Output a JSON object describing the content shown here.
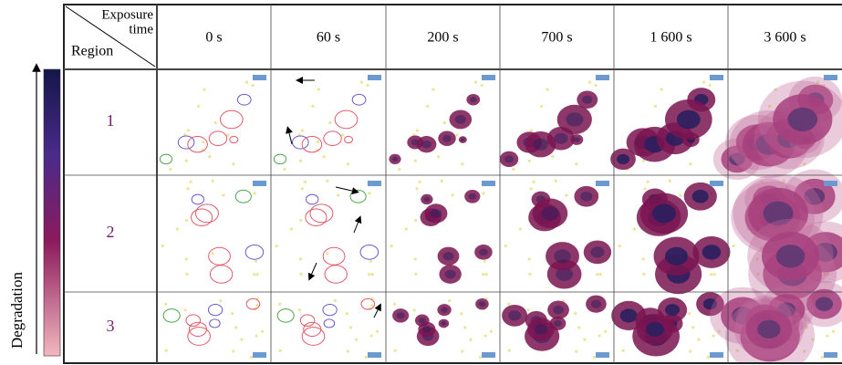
{
  "corner": {
    "top_lines": [
      "Exposure",
      "time"
    ],
    "left": "Region"
  },
  "columns": [
    "0 s",
    "60 s",
    "200 s",
    "700 s",
    "1 600 s",
    "3 600 s"
  ],
  "rows": [
    "1",
    "2",
    "3"
  ],
  "colorbar_label": "Degradation"
}
